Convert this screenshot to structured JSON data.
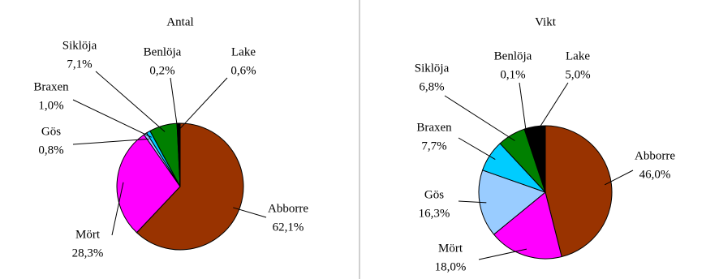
{
  "chart_data": [
    {
      "type": "pie",
      "title": "Antal",
      "categories": [
        "Abborre",
        "Mört",
        "Gös",
        "Braxen",
        "Siklöja",
        "Benlöja",
        "Lake"
      ],
      "values": [
        62.1,
        28.3,
        0.8,
        1.0,
        7.1,
        0.2,
        0.6
      ],
      "value_labels": [
        "62,1%",
        "28,3%",
        "0,8%",
        "1,0%",
        "7,1%",
        "0,2%",
        "0,6%"
      ],
      "colors": [
        "#993300",
        "#ff00ff",
        "#99ccff",
        "#00ccff",
        "#008000",
        "#808080",
        "#000000"
      ]
    },
    {
      "type": "pie",
      "title": "Vikt",
      "categories": [
        "Abborre",
        "Mört",
        "Gös",
        "Braxen",
        "Siklöja",
        "Benlöja",
        "Lake"
      ],
      "values": [
        46.0,
        18.0,
        16.3,
        7.7,
        6.8,
        0.1,
        5.0
      ],
      "value_labels": [
        "46,0%",
        "18,0%",
        "16,3%",
        "7,7%",
        "6,8%",
        "0,1%",
        "5,0%"
      ],
      "colors": [
        "#993300",
        "#ff00ff",
        "#99ccff",
        "#00ccff",
        "#008000",
        "#808080",
        "#000000"
      ]
    }
  ]
}
